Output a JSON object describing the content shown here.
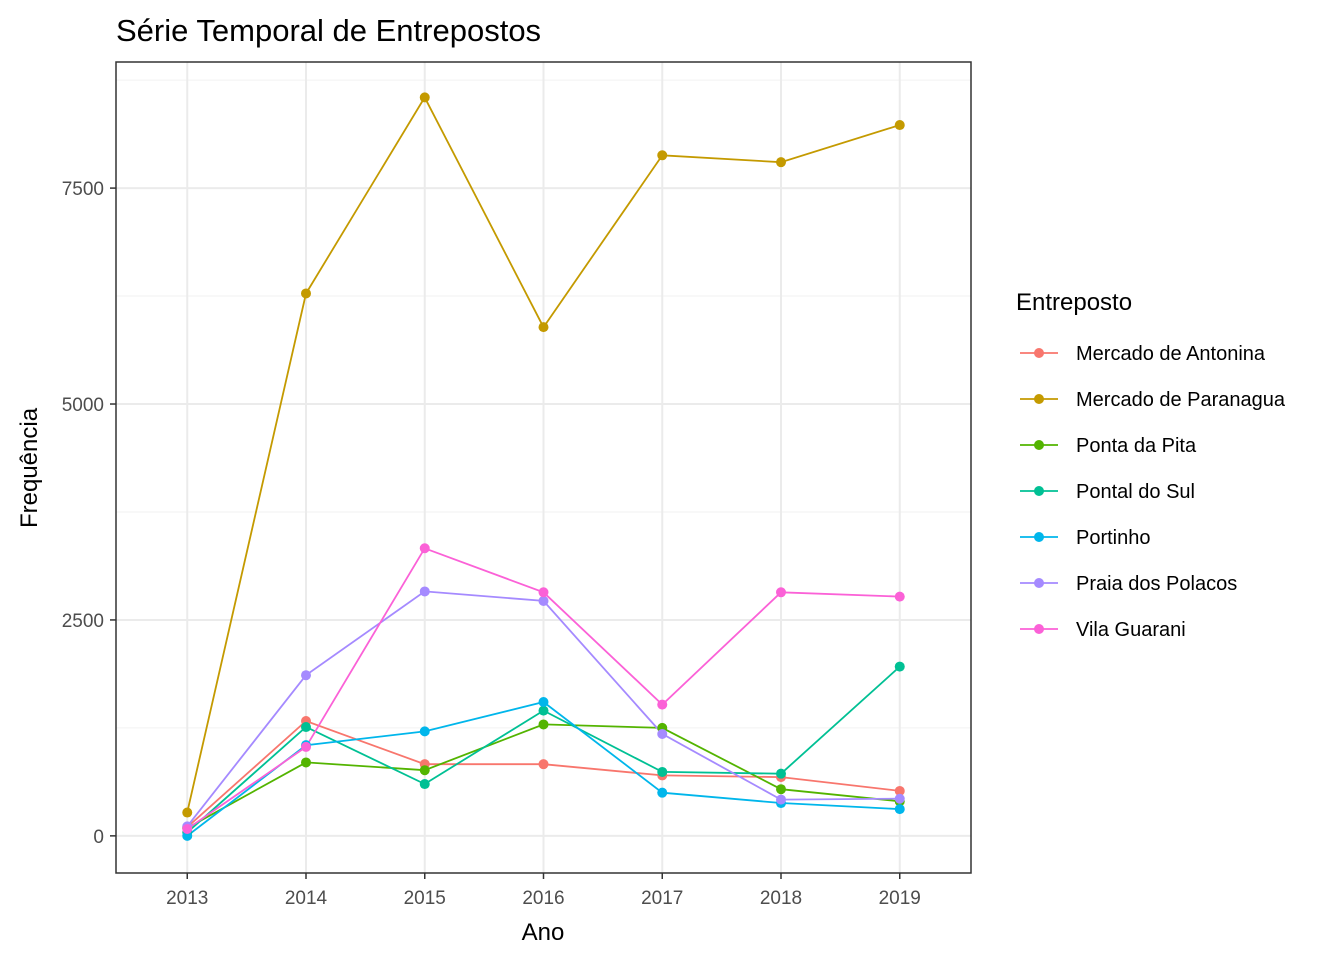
{
  "chart_data": {
    "type": "line",
    "title": "Série Temporal de Entrepostos",
    "xlabel": "Ano",
    "ylabel": "Frequência",
    "x": [
      2013,
      2014,
      2015,
      2016,
      2017,
      2018,
      2019
    ],
    "x_tick_labels": [
      "2013",
      "2014",
      "2015",
      "2016",
      "2017",
      "2018",
      "2019"
    ],
    "y_ticks": [
      0,
      2500,
      5000,
      7500
    ],
    "y_tick_labels": [
      "0",
      "2500",
      "5000",
      "7500"
    ],
    "ylim": [
      -430,
      8960
    ],
    "xlim": [
      2012.4,
      2019.6
    ],
    "grid": true,
    "legend_title": "Entreposto",
    "legend_position": "right",
    "series": [
      {
        "name": "Mercado de Antonina",
        "color": "#F8766D",
        "values": [
          100,
          1330,
          830,
          830,
          700,
          680,
          520
        ]
      },
      {
        "name": "Mercado de Paranagua",
        "color": "#C49A00",
        "values": [
          270,
          6280,
          8550,
          5890,
          7880,
          7800,
          8230
        ]
      },
      {
        "name": "Ponta da Pita",
        "color": "#53B400",
        "values": [
          90,
          850,
          760,
          1290,
          1250,
          540,
          400
        ]
      },
      {
        "name": "Pontal do Sul",
        "color": "#00C094",
        "values": [
          40,
          1260,
          600,
          1450,
          740,
          720,
          1960
        ]
      },
      {
        "name": "Portinho",
        "color": "#00B6EB",
        "values": [
          0,
          1050,
          1210,
          1550,
          500,
          380,
          310
        ]
      },
      {
        "name": "Praia dos Polacos",
        "color": "#A58AFF",
        "values": [
          110,
          1860,
          2830,
          2720,
          1180,
          420,
          430
        ]
      },
      {
        "name": "Vila Guarani",
        "color": "#FB61D7",
        "values": [
          80,
          1030,
          3330,
          2820,
          1520,
          2820,
          2770
        ]
      }
    ]
  }
}
